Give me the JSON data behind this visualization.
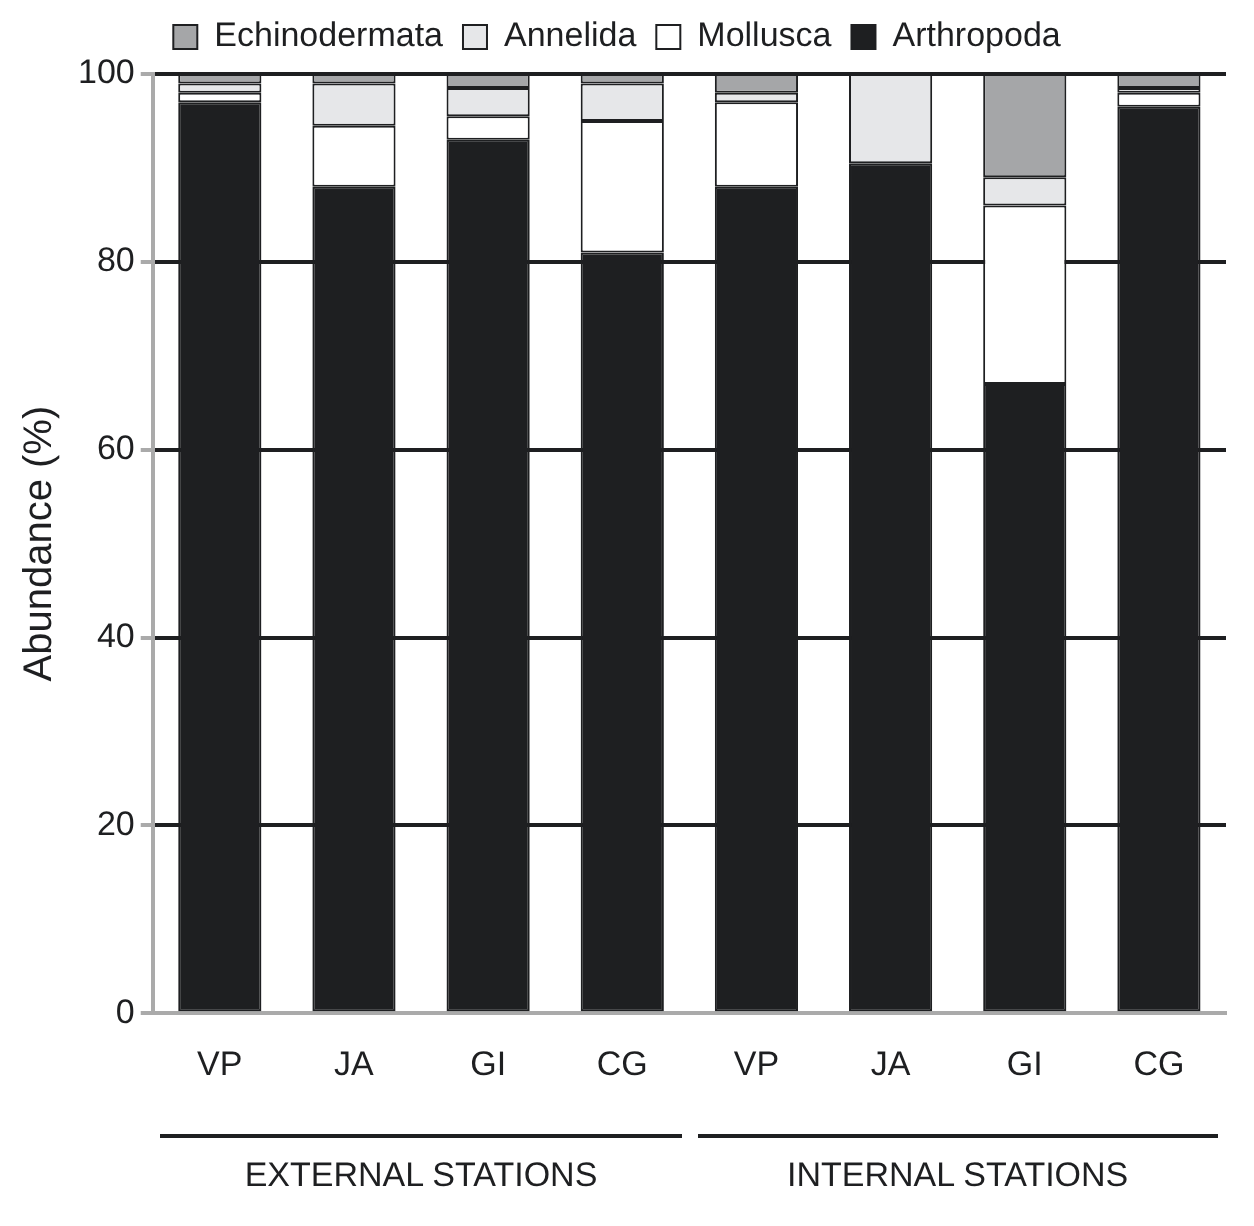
{
  "chart_data": {
    "type": "bar",
    "stacked": true,
    "ylabel": "Abundance (%)",
    "categories": [
      "VP",
      "JA",
      "GI",
      "CG",
      "VP",
      "JA",
      "GI",
      "CG"
    ],
    "series": [
      {
        "name": "Arthropoda",
        "color": "#1e1f21",
        "values": [
          97,
          88,
          93,
          81,
          88,
          90.5,
          67,
          96.5
        ]
      },
      {
        "name": "Mollusca",
        "color": "#ffffff",
        "values": [
          1,
          6.5,
          2.5,
          14,
          9,
          0,
          19,
          1.5
        ]
      },
      {
        "name": "Annelida",
        "color": "#e6e7e9",
        "values": [
          1,
          4.5,
          3,
          4,
          1,
          9.5,
          3,
          0.5
        ]
      },
      {
        "name": "Echinodermata",
        "color": "#a5a6a8",
        "values": [
          1,
          1,
          1.5,
          1,
          2,
          0,
          11,
          1.5
        ]
      }
    ],
    "ylim": [
      0,
      100
    ],
    "yticks": [
      0,
      20,
      40,
      60,
      80,
      100
    ],
    "grid": "y",
    "legend": "top",
    "annotations": [
      "EXTERNAL STATIONS",
      "INTERNAL STATIONS"
    ]
  }
}
